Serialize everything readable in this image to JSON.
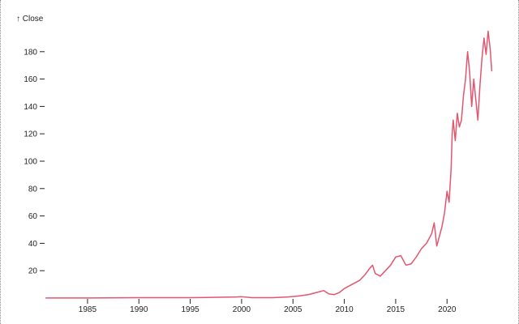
{
  "chart_data": {
    "type": "line",
    "title": "",
    "xlabel": "",
    "ylabel": "↑ Close",
    "x_ticks": [
      "1985",
      "1990",
      "1995",
      "2000",
      "2005",
      "2010",
      "2015",
      "2020"
    ],
    "y_ticks": [
      "20",
      "40",
      "60",
      "80",
      "100",
      "120",
      "140",
      "160",
      "180"
    ],
    "xlim": [
      1980.9,
      2024.4
    ],
    "ylim": [
      0,
      200
    ],
    "grid": false,
    "line_color": "#e2566f",
    "series": [
      {
        "name": "",
        "x": [
          1980.95,
          1985,
          1990,
          1995,
          1999.5,
          2000.0,
          2001,
          2003,
          2004.5,
          2005.5,
          2006.5,
          2007.5,
          2008.0,
          2008.5,
          2009.0,
          2009.5,
          2010.0,
          2010.5,
          2011.0,
          2011.5,
          2012.0,
          2012.5,
          2012.75,
          2013.0,
          2013.5,
          2014.0,
          2014.5,
          2015.0,
          2015.5,
          2016.0,
          2016.5,
          2017.0,
          2017.5,
          2018.0,
          2018.5,
          2018.75,
          2019.0,
          2019.25,
          2019.5,
          2019.75,
          2020.0,
          2020.2,
          2020.4,
          2020.5,
          2020.6,
          2020.8,
          2021.0,
          2021.2,
          2021.4,
          2021.6,
          2021.8,
          2022.0,
          2022.2,
          2022.4,
          2022.6,
          2022.8,
          2023.0,
          2023.2,
          2023.4,
          2023.6,
          2023.8,
          2024.0,
          2024.2,
          2024.35
        ],
        "y": [
          0.1,
          0.1,
          0.3,
          0.3,
          0.8,
          1.0,
          0.3,
          0.3,
          0.8,
          1.5,
          2.5,
          4.5,
          5.5,
          3.0,
          2.5,
          4.0,
          7.0,
          9.0,
          11.0,
          13.0,
          17.0,
          22.0,
          24.0,
          18.0,
          16.0,
          20.0,
          24.0,
          30.0,
          31.0,
          24.0,
          25.0,
          30.0,
          36.0,
          40.0,
          47.0,
          55.0,
          38.0,
          45.0,
          52.0,
          62.0,
          78.0,
          70.0,
          95.0,
          120.0,
          130.0,
          115.0,
          135.0,
          125.0,
          130.0,
          148.0,
          160.0,
          180.0,
          165.0,
          140.0,
          160.0,
          145.0,
          130.0,
          155.0,
          175.0,
          190.0,
          178.0,
          195.0,
          182.0,
          166.0
        ]
      }
    ]
  }
}
